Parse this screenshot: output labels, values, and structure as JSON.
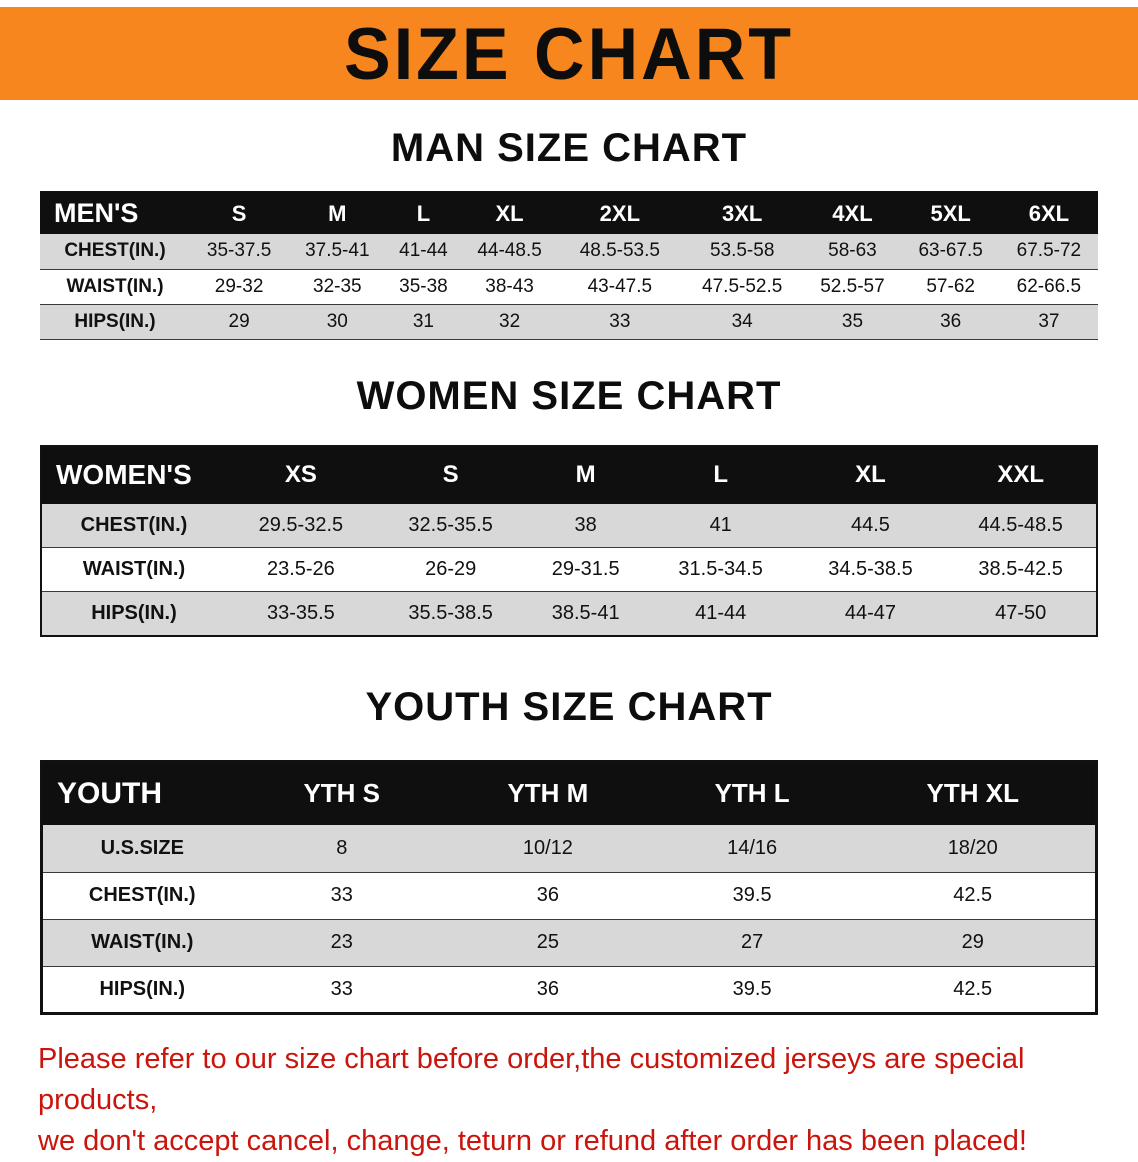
{
  "banner": {
    "title": "SIZE CHART",
    "background_color": "#f6861d"
  },
  "sections": [
    {
      "heading": "MAN SIZE CHART",
      "table": {
        "header": [
          "MEN'S",
          "S",
          "M",
          "L",
          "XL",
          "2XL",
          "3XL",
          "4XL",
          "5XL",
          "6XL"
        ],
        "rows": [
          [
            "CHEST(IN.)",
            "35-37.5",
            "37.5-41",
            "41-44",
            "44-48.5",
            "48.5-53.5",
            "53.5-58",
            "58-63",
            "63-67.5",
            "67.5-72"
          ],
          [
            "WAIST(IN.)",
            "29-32",
            "32-35",
            "35-38",
            "38-43",
            "43-47.5",
            "47.5-52.5",
            "52.5-57",
            "57-62",
            "62-66.5"
          ],
          [
            "HIPS(IN.)",
            "29",
            "30",
            "31",
            "32",
            "33",
            "34",
            "35",
            "36",
            "37"
          ]
        ]
      }
    },
    {
      "heading": "WOMEN SIZE CHART",
      "table": {
        "header": [
          "WOMEN'S",
          "XS",
          "S",
          "M",
          "L",
          "XL",
          "XXL"
        ],
        "rows": [
          [
            "CHEST(IN.)",
            "29.5-32.5",
            "32.5-35.5",
            "38",
            "41",
            "44.5",
            "44.5-48.5"
          ],
          [
            "WAIST(IN.)",
            "23.5-26",
            "26-29",
            "29-31.5",
            "31.5-34.5",
            "34.5-38.5",
            "38.5-42.5"
          ],
          [
            "HIPS(IN.)",
            "33-35.5",
            "35.5-38.5",
            "38.5-41",
            "41-44",
            "44-47",
            "47-50"
          ]
        ]
      }
    },
    {
      "heading": "YOUTH SIZE CHART",
      "table": {
        "header": [
          "YOUTH",
          "YTH S",
          "YTH M",
          "YTH L",
          "YTH XL"
        ],
        "rows": [
          [
            "U.S.SIZE",
            "8",
            "10/12",
            "14/16",
            "18/20"
          ],
          [
            "CHEST(IN.)",
            "33",
            "36",
            "39.5",
            "42.5"
          ],
          [
            "WAIST(IN.)",
            "23",
            "25",
            "27",
            "29"
          ],
          [
            "HIPS(IN.)",
            "33",
            "36",
            "39.5",
            "42.5"
          ]
        ]
      }
    }
  ],
  "footer": {
    "line1": "Please refer to our size chart before order,the customized jerseys are special products,",
    "line2": "we don't accept cancel, change, teturn or refund after order has been placed!"
  },
  "colors": {
    "banner_orange": "#f6861d",
    "header_black": "#0f0f0f",
    "row_gray": "#d8d8d8",
    "notice_red": "#c9150c"
  }
}
